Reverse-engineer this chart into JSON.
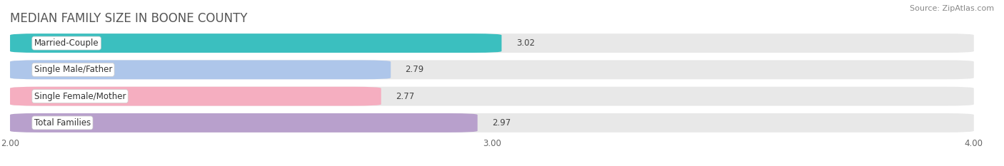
{
  "title": "MEDIAN FAMILY SIZE IN BOONE COUNTY",
  "source": "Source: ZipAtlas.com",
  "categories": [
    "Married-Couple",
    "Single Male/Father",
    "Single Female/Mother",
    "Total Families"
  ],
  "values": [
    3.02,
    2.79,
    2.77,
    2.97
  ],
  "bar_colors": [
    "#3bbfbf",
    "#aec6ea",
    "#f5aec0",
    "#b8a0cc"
  ],
  "xlim": [
    2.0,
    4.0
  ],
  "xticks": [
    2.0,
    3.0,
    4.0
  ],
  "xtick_labels": [
    "2.00",
    "3.00",
    "4.00"
  ],
  "background_color": "#ffffff",
  "bar_bg_color": "#e8e8e8",
  "row_bg_color": "#f5f5f5",
  "title_fontsize": 12,
  "label_fontsize": 8.5,
  "value_fontsize": 8.5,
  "source_fontsize": 8
}
